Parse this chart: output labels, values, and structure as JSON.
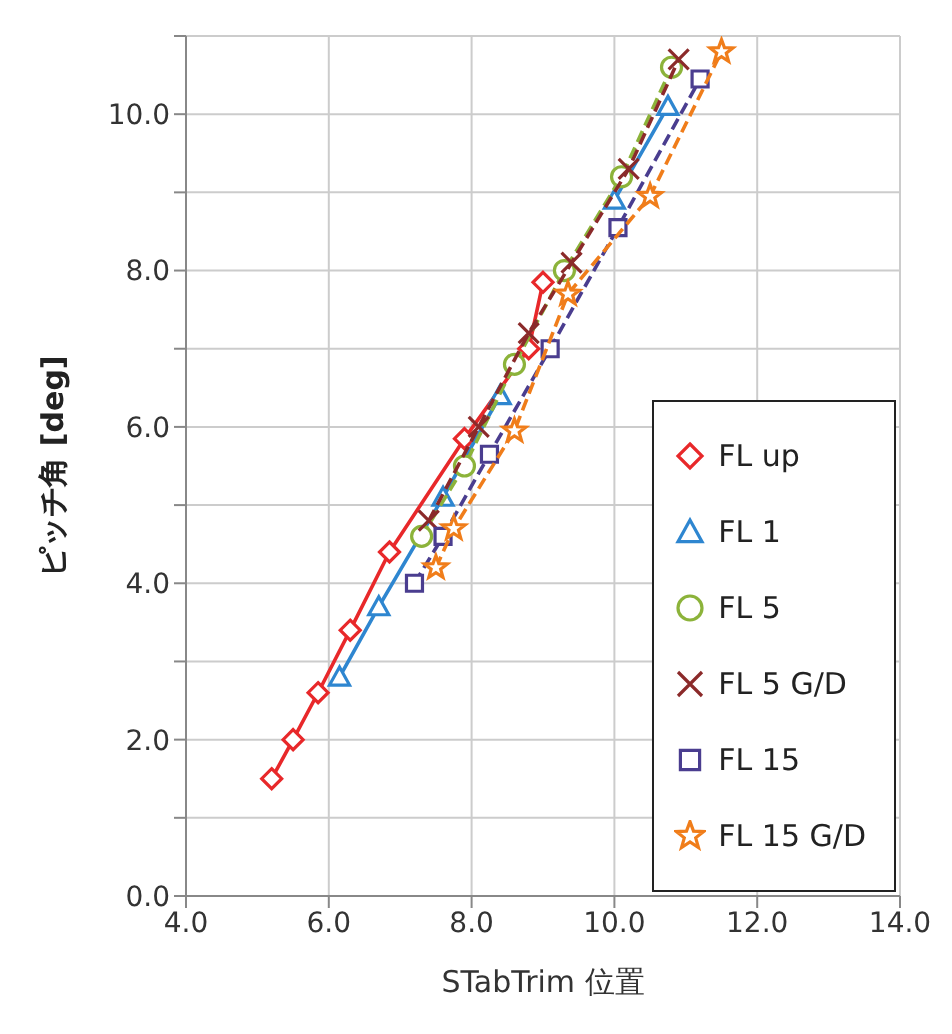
{
  "chart_data": {
    "type": "line",
    "xlabel": "STabTrim 位置",
    "ylabel": "ピッチ角 [deg]",
    "xlim": [
      4,
      14
    ],
    "xticks": [
      {
        "value": 4,
        "label": "4.0"
      },
      {
        "value": 6,
        "label": "6.0"
      },
      {
        "value": 8,
        "label": "8.0"
      },
      {
        "value": 10,
        "label": "10.0"
      },
      {
        "value": 12,
        "label": "12.0"
      },
      {
        "value": 14,
        "label": "14.0"
      }
    ],
    "ylim": [
      0,
      11
    ],
    "yticks": [
      {
        "value": 0,
        "label": "0.0"
      },
      {
        "value": 1,
        "label": null
      },
      {
        "value": 2,
        "label": "2.0"
      },
      {
        "value": 3,
        "label": null
      },
      {
        "value": 4,
        "label": "4.0"
      },
      {
        "value": 5,
        "label": null
      },
      {
        "value": 6,
        "label": "6.0"
      },
      {
        "value": 7,
        "label": null
      },
      {
        "value": 8,
        "label": "8.0"
      },
      {
        "value": 9,
        "label": null
      },
      {
        "value": 10,
        "label": "10.0"
      },
      {
        "value": 11,
        "label": null
      }
    ],
    "grid": true,
    "legend": "bottom right",
    "series": [
      {
        "name": "FL up",
        "color": "#e8282a",
        "marker": "diamond",
        "line_style": "solid",
        "x": [
          5.2,
          5.5,
          5.85,
          6.3,
          6.85,
          7.9,
          8.8,
          9.0
        ],
        "values": [
          1.5,
          2.0,
          2.6,
          3.4,
          4.4,
          5.85,
          7.0,
          7.85
        ]
      },
      {
        "name": "FL 1",
        "color": "#2e86d0",
        "marker": "triangle",
        "line_style": "solid",
        "x": [
          6.15,
          6.7,
          7.6,
          8.4,
          9.3,
          10.0,
          10.75
        ],
        "values": [
          2.8,
          3.7,
          5.1,
          6.4,
          null,
          8.9,
          10.1
        ]
      },
      {
        "name": "FL 5",
        "color": "#8cb33a",
        "marker": "circle",
        "line_style": "dashed",
        "x": [
          7.3,
          7.9,
          8.6,
          9.3,
          10.1,
          10.8
        ],
        "values": [
          4.6,
          5.5,
          6.8,
          8.0,
          9.2,
          10.6
        ]
      },
      {
        "name": "FL 5 G/D",
        "color": "#8b2a2a",
        "marker": "cross",
        "line_style": "dashed",
        "x": [
          7.4,
          8.1,
          8.8,
          9.4,
          10.2,
          10.9
        ],
        "values": [
          4.8,
          6.0,
          7.2,
          8.1,
          9.3,
          10.7
        ]
      },
      {
        "name": "FL 15",
        "color": "#4a3d8f",
        "marker": "square",
        "line_style": "dashed",
        "x": [
          7.2,
          7.6,
          8.25,
          9.1,
          10.05,
          11.2
        ],
        "values": [
          4.0,
          4.6,
          5.65,
          7.0,
          8.55,
          10.45
        ]
      },
      {
        "name": "FL 15 G/D",
        "color": "#f07d1a",
        "marker": "star",
        "line_style": "dashed",
        "x": [
          7.5,
          7.75,
          8.6,
          9.35,
          10.5,
          11.5
        ],
        "values": [
          4.2,
          4.7,
          5.95,
          7.7,
          8.95,
          10.8
        ]
      }
    ]
  }
}
